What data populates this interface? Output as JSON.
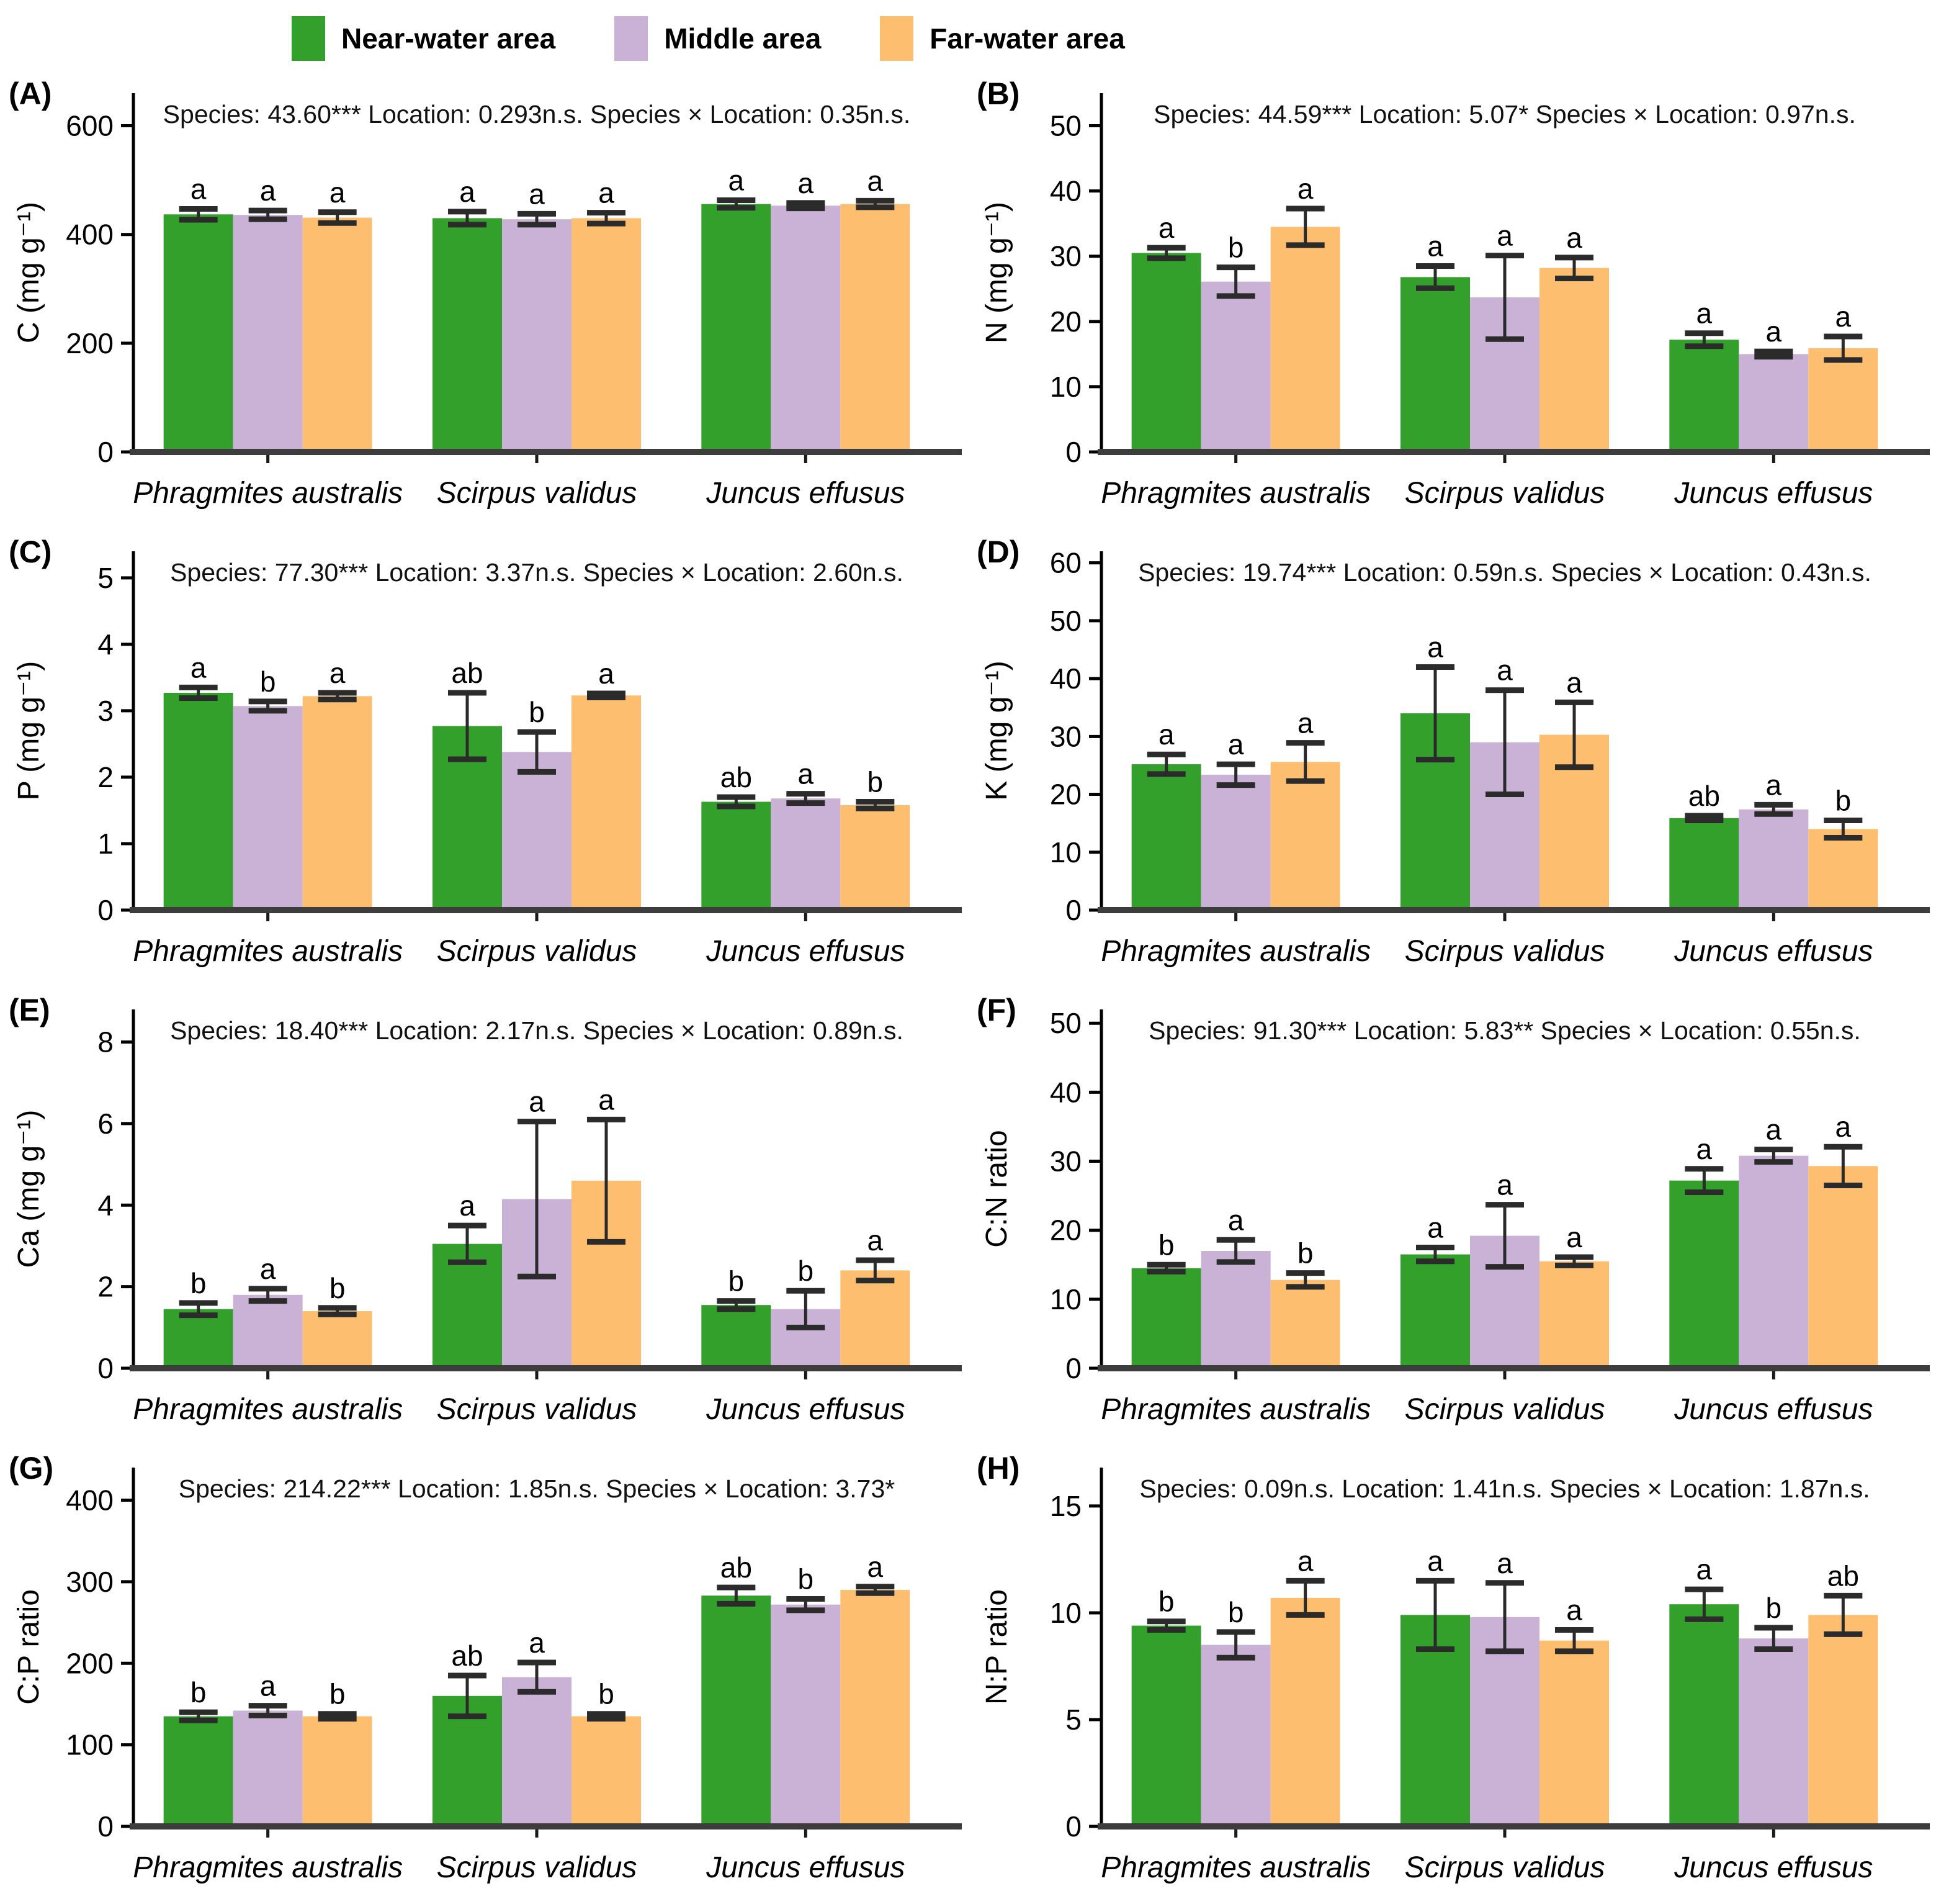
{
  "legend": {
    "items": [
      {
        "label": "Near-water area",
        "color": "#33a02c"
      },
      {
        "label": "Middle area",
        "color": "#cab2d6"
      },
      {
        "label": "Far-water area",
        "color": "#fdbf6f"
      }
    ]
  },
  "species": [
    "Phragmites australis",
    "Scirpus validus",
    "Juncus effusus"
  ],
  "locations": [
    "Near-water area",
    "Middle area",
    "Far-water area"
  ],
  "colors": {
    "near_water": "#33a02c",
    "middle": "#cab2d6",
    "far_water": "#fdbf6f",
    "axis": "#3d3d3d",
    "error_bar": "#2b2b2b"
  },
  "chart_data": [
    {
      "panel": "(A)",
      "type": "bar",
      "ylabel": "C (mg g⁻¹)",
      "stats": "Species: 43.60*** Location: 0.293n.s. Species × Location: 0.35n.s.",
      "ylim": [
        0,
        660
      ],
      "yticks": [
        0,
        200,
        400,
        600
      ],
      "categories": [
        "Phragmites australis",
        "Scirpus validus",
        "Juncus effusus"
      ],
      "series": [
        {
          "name": "Near-water area",
          "values": [
            437,
            430,
            456
          ],
          "errors": [
            10,
            12,
            7
          ],
          "letters": [
            "a",
            "a",
            "a"
          ]
        },
        {
          "name": "Middle area",
          "values": [
            436,
            428,
            453
          ],
          "errors": [
            8,
            10,
            5
          ],
          "letters": [
            "a",
            "a",
            "a"
          ]
        },
        {
          "name": "Far-water area",
          "values": [
            431,
            430,
            456
          ],
          "errors": [
            10,
            10,
            6
          ],
          "letters": [
            "a",
            "a",
            "a"
          ]
        }
      ]
    },
    {
      "panel": "(B)",
      "type": "bar",
      "ylabel": "N (mg g⁻¹)",
      "stats": "Species: 44.59*** Location: 5.07* Species × Location: 0.97n.s.",
      "ylim": [
        0,
        55
      ],
      "yticks": [
        0,
        10,
        20,
        30,
        40,
        50
      ],
      "categories": [
        "Phragmites australis",
        "Scirpus validus",
        "Juncus effusus"
      ],
      "series": [
        {
          "name": "Near-water area",
          "values": [
            30.5,
            26.8,
            17.2
          ],
          "errors": [
            0.8,
            1.7,
            1.0
          ],
          "letters": [
            "a",
            "a",
            "a"
          ]
        },
        {
          "name": "Middle area",
          "values": [
            26.1,
            23.7,
            15.0
          ],
          "errors": [
            2.2,
            6.4,
            0.4
          ],
          "letters": [
            "b",
            "a",
            "a"
          ]
        },
        {
          "name": "Far-water area",
          "values": [
            34.5,
            28.2,
            15.9
          ],
          "errors": [
            2.8,
            1.6,
            1.8
          ],
          "letters": [
            "a",
            "a",
            "a"
          ]
        }
      ]
    },
    {
      "panel": "(C)",
      "type": "bar",
      "ylabel": "P (mg g⁻¹)",
      "stats": "Species: 77.30*** Location: 3.37n.s. Species × Location: 2.60n.s.",
      "ylim": [
        0,
        5.4
      ],
      "yticks": [
        0,
        1,
        2,
        3,
        4,
        5
      ],
      "categories": [
        "Phragmites australis",
        "Scirpus validus",
        "Juncus effusus"
      ],
      "series": [
        {
          "name": "Near-water area",
          "values": [
            3.27,
            2.77,
            1.63
          ],
          "errors": [
            0.08,
            0.5,
            0.07
          ],
          "letters": [
            "a",
            "ab",
            "ab"
          ]
        },
        {
          "name": "Middle area",
          "values": [
            3.07,
            2.38,
            1.68
          ],
          "errors": [
            0.07,
            0.3,
            0.07
          ],
          "letters": [
            "b",
            "b",
            "a"
          ]
        },
        {
          "name": "Far-water area",
          "values": [
            3.22,
            3.23,
            1.58
          ],
          "errors": [
            0.05,
            0.03,
            0.05
          ],
          "letters": [
            "a",
            "a",
            "b"
          ]
        }
      ]
    },
    {
      "panel": "(D)",
      "type": "bar",
      "ylabel": "K (mg g⁻¹)",
      "stats": "Species: 19.74*** Location: 0.59n.s. Species × Location: 0.43n.s.",
      "ylim": [
        0,
        62
      ],
      "yticks": [
        0,
        10,
        20,
        30,
        40,
        50,
        60
      ],
      "categories": [
        "Phragmites australis",
        "Scirpus validus",
        "Juncus effusus"
      ],
      "series": [
        {
          "name": "Near-water area",
          "values": [
            25.2,
            34.0,
            15.9
          ],
          "errors": [
            1.7,
            8.0,
            0.4
          ],
          "letters": [
            "a",
            "a",
            "ab"
          ]
        },
        {
          "name": "Middle area",
          "values": [
            23.4,
            29.0,
            17.4
          ],
          "errors": [
            1.8,
            9.0,
            0.8
          ],
          "letters": [
            "a",
            "a",
            "a"
          ]
        },
        {
          "name": "Far-water area",
          "values": [
            25.6,
            30.3,
            14.0
          ],
          "errors": [
            3.3,
            5.6,
            1.5
          ],
          "letters": [
            "a",
            "a",
            "b"
          ]
        }
      ]
    },
    {
      "panel": "(E)",
      "type": "bar",
      "ylabel": "Ca (mg g⁻¹)",
      "stats": "Species: 18.40*** Location: 2.17n.s. Species × Location: 0.89n.s.",
      "ylim": [
        0,
        8.8
      ],
      "yticks": [
        0,
        2,
        4,
        6,
        8
      ],
      "categories": [
        "Phragmites australis",
        "Scirpus validus",
        "Juncus effusus"
      ],
      "series": [
        {
          "name": "Near-water area",
          "values": [
            1.45,
            3.05,
            1.55
          ],
          "errors": [
            0.15,
            0.45,
            0.1
          ],
          "letters": [
            "b",
            "a",
            "b"
          ]
        },
        {
          "name": "Middle area",
          "values": [
            1.8,
            4.15,
            1.45
          ],
          "errors": [
            0.15,
            1.9,
            0.45
          ],
          "letters": [
            "a",
            "a",
            "b"
          ]
        },
        {
          "name": "Far-water area",
          "values": [
            1.4,
            4.6,
            2.4
          ],
          "errors": [
            0.08,
            1.5,
            0.25
          ],
          "letters": [
            "b",
            "a",
            "a"
          ]
        }
      ]
    },
    {
      "panel": "(F)",
      "type": "bar",
      "ylabel": "C:N ratio",
      "stats": "Species: 91.30*** Location: 5.83** Species × Location: 0.55n.s.",
      "ylim": [
        0,
        52
      ],
      "yticks": [
        0,
        10,
        20,
        30,
        40,
        50
      ],
      "categories": [
        "Phragmites australis",
        "Scirpus validus",
        "Juncus effusus"
      ],
      "series": [
        {
          "name": "Near-water area",
          "values": [
            14.5,
            16.5,
            27.2
          ],
          "errors": [
            0.5,
            1.0,
            1.7
          ],
          "letters": [
            "b",
            "a",
            "a"
          ]
        },
        {
          "name": "Middle area",
          "values": [
            17.0,
            19.2,
            30.8
          ],
          "errors": [
            1.6,
            4.5,
            0.9
          ],
          "letters": [
            "a",
            "a",
            "a"
          ]
        },
        {
          "name": "Far-water area",
          "values": [
            12.8,
            15.5,
            29.3
          ],
          "errors": [
            1.0,
            0.6,
            2.8
          ],
          "letters": [
            "b",
            "a",
            "a"
          ]
        }
      ]
    },
    {
      "panel": "(G)",
      "type": "bar",
      "ylabel": "C:P ratio",
      "stats": "Species: 214.22*** Location: 1.85n.s. Species × Location: 3.73*",
      "ylim": [
        0,
        440
      ],
      "yticks": [
        0,
        100,
        200,
        300,
        400
      ],
      "categories": [
        "Phragmites australis",
        "Scirpus validus",
        "Juncus effusus"
      ],
      "series": [
        {
          "name": "Near-water area",
          "values": [
            135,
            160,
            283
          ],
          "errors": [
            5,
            25,
            10
          ],
          "letters": [
            "b",
            "ab",
            "ab"
          ]
        },
        {
          "name": "Middle area",
          "values": [
            142,
            183,
            272
          ],
          "errors": [
            6,
            18,
            7
          ],
          "letters": [
            "a",
            "a",
            "b"
          ]
        },
        {
          "name": "Far-water area",
          "values": [
            135,
            135,
            290
          ],
          "errors": [
            3,
            3,
            4
          ],
          "letters": [
            "b",
            "b",
            "a"
          ]
        }
      ]
    },
    {
      "panel": "(H)",
      "type": "bar",
      "ylabel": "N:P ratio",
      "stats": "Species: 0.09n.s. Location: 1.41n.s. Species × Location: 1.87n.s.",
      "ylim": [
        0,
        16.8
      ],
      "yticks": [
        0,
        5,
        10,
        15
      ],
      "categories": [
        "Phragmites australis",
        "Scirpus validus",
        "Juncus effusus"
      ],
      "series": [
        {
          "name": "Near-water area",
          "values": [
            9.4,
            9.9,
            10.4
          ],
          "errors": [
            0.2,
            1.6,
            0.7
          ],
          "letters": [
            "b",
            "a",
            "a"
          ]
        },
        {
          "name": "Middle area",
          "values": [
            8.5,
            9.8,
            8.8
          ],
          "errors": [
            0.6,
            1.6,
            0.5
          ],
          "letters": [
            "b",
            "a",
            "b"
          ]
        },
        {
          "name": "Far-water area",
          "values": [
            10.7,
            8.7,
            9.9
          ],
          "errors": [
            0.8,
            0.5,
            0.9
          ],
          "letters": [
            "a",
            "a",
            "ab"
          ]
        }
      ]
    }
  ]
}
